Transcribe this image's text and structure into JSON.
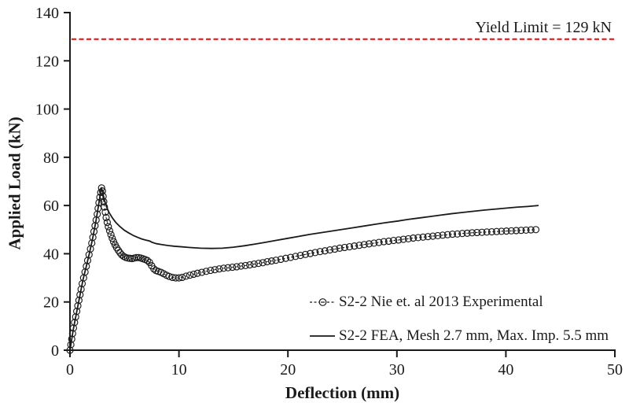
{
  "chart_data": {
    "type": "line",
    "title": "",
    "xlabel": "Deflection (mm)",
    "ylabel": "Applied Load (kN)",
    "xlim": [
      0,
      50
    ],
    "ylim": [
      0,
      140
    ],
    "x_ticks": [
      0,
      10,
      20,
      30,
      40,
      50
    ],
    "y_ticks": [
      0,
      20,
      40,
      60,
      80,
      100,
      120,
      140
    ],
    "grid": false,
    "legend_position": "inside-bottom-right",
    "axis_color": "#1a1a1a",
    "yield_line": {
      "value": 129,
      "label": "Yield Limit = 129 kN",
      "color": "#ff0000",
      "style": "dashed"
    },
    "series": [
      {
        "name": "S2-2 Nie et. al 2013 Experimental",
        "style": "dashed",
        "marker": "circle",
        "color": "#1a1a1a",
        "points": [
          [
            0,
            0
          ],
          [
            0.08,
            2.3
          ],
          [
            0.16,
            4.6
          ],
          [
            0.24,
            6.9
          ],
          [
            0.32,
            9.2
          ],
          [
            0.42,
            11.5
          ],
          [
            0.52,
            13.8
          ],
          [
            0.62,
            16.1
          ],
          [
            0.72,
            18.4
          ],
          [
            0.82,
            20.7
          ],
          [
            0.92,
            23
          ],
          [
            1.02,
            25.3
          ],
          [
            1.12,
            27.6
          ],
          [
            1.25,
            30
          ],
          [
            1.38,
            32.4
          ],
          [
            1.5,
            34.8
          ],
          [
            1.62,
            37.2
          ],
          [
            1.75,
            39.6
          ],
          [
            1.88,
            42
          ],
          [
            2,
            44.4
          ],
          [
            2.1,
            46.8
          ],
          [
            2.2,
            49.2
          ],
          [
            2.3,
            51.6
          ],
          [
            2.4,
            54
          ],
          [
            2.5,
            56.4
          ],
          [
            2.58,
            58.8
          ],
          [
            2.66,
            61.2
          ],
          [
            2.74,
            63.4
          ],
          [
            2.82,
            65.4
          ],
          [
            2.9,
            67.3
          ],
          [
            2.98,
            66
          ],
          [
            3.04,
            63.8
          ],
          [
            3.1,
            61.6
          ],
          [
            3.16,
            59.4
          ],
          [
            3.24,
            57.2
          ],
          [
            3.32,
            55
          ],
          [
            3.42,
            53
          ],
          [
            3.52,
            51.2
          ],
          [
            3.64,
            49.5
          ],
          [
            3.76,
            47.9
          ],
          [
            3.88,
            46.4
          ],
          [
            4,
            45
          ],
          [
            4.14,
            43.7
          ],
          [
            4.28,
            42.5
          ],
          [
            4.44,
            41.4
          ],
          [
            4.6,
            40.4
          ],
          [
            4.76,
            39.5
          ],
          [
            4.93,
            38.9
          ],
          [
            5.1,
            38.5
          ],
          [
            5.3,
            38.2
          ],
          [
            5.5,
            38.1
          ],
          [
            5.7,
            38
          ],
          [
            5.9,
            38.2
          ],
          [
            6.1,
            38.4
          ],
          [
            6.3,
            38.4
          ],
          [
            6.5,
            38.2
          ],
          [
            6.7,
            37.9
          ],
          [
            6.9,
            37.6
          ],
          [
            7.1,
            37.2
          ],
          [
            7.3,
            36.4
          ],
          [
            7.5,
            35
          ],
          [
            7.7,
            33.7
          ],
          [
            7.9,
            33
          ],
          [
            8.1,
            32.7
          ],
          [
            8.35,
            32.3
          ],
          [
            8.6,
            31.7
          ],
          [
            8.85,
            31.1
          ],
          [
            9.1,
            30.6
          ],
          [
            9.4,
            30.2
          ],
          [
            9.7,
            30
          ],
          [
            10,
            30
          ],
          [
            10.3,
            30.2
          ],
          [
            10.65,
            30.7
          ],
          [
            11,
            31.1
          ],
          [
            11.35,
            31.5
          ],
          [
            11.7,
            31.9
          ],
          [
            12.1,
            32.3
          ],
          [
            12.5,
            32.7
          ],
          [
            12.9,
            33.1
          ],
          [
            13.3,
            33.4
          ],
          [
            13.7,
            33.7
          ],
          [
            14.1,
            34
          ],
          [
            14.5,
            34.2
          ],
          [
            14.9,
            34.4
          ],
          [
            15.3,
            34.6
          ],
          [
            15.7,
            34.9
          ],
          [
            16.1,
            35.1
          ],
          [
            16.5,
            35.4
          ],
          [
            16.9,
            35.7
          ],
          [
            17.3,
            36
          ],
          [
            17.7,
            36.3
          ],
          [
            18.1,
            36.7
          ],
          [
            18.5,
            37
          ],
          [
            18.9,
            37.3
          ],
          [
            19.35,
            37.7
          ],
          [
            19.8,
            38.1
          ],
          [
            20.25,
            38.5
          ],
          [
            20.7,
            38.9
          ],
          [
            21.15,
            39.3
          ],
          [
            21.6,
            39.7
          ],
          [
            22.05,
            40.1
          ],
          [
            22.5,
            40.5
          ],
          [
            22.95,
            40.9
          ],
          [
            23.4,
            41.2
          ],
          [
            23.85,
            41.6
          ],
          [
            24.3,
            41.9
          ],
          [
            24.75,
            42.3
          ],
          [
            25.2,
            42.6
          ],
          [
            25.65,
            42.9
          ],
          [
            26.1,
            43.2
          ],
          [
            26.55,
            43.5
          ],
          [
            27,
            43.8
          ],
          [
            27.45,
            44.1
          ],
          [
            27.9,
            44.4
          ],
          [
            28.35,
            44.7
          ],
          [
            28.8,
            45
          ],
          [
            29.25,
            45.2
          ],
          [
            29.7,
            45.5
          ],
          [
            30.15,
            45.7
          ],
          [
            30.6,
            46
          ],
          [
            31.05,
            46.2
          ],
          [
            31.5,
            46.5
          ],
          [
            31.95,
            46.7
          ],
          [
            32.4,
            46.9
          ],
          [
            32.85,
            47.1
          ],
          [
            33.3,
            47.3
          ],
          [
            33.75,
            47.5
          ],
          [
            34.2,
            47.7
          ],
          [
            34.65,
            47.9
          ],
          [
            35.1,
            48.1
          ],
          [
            35.55,
            48.2
          ],
          [
            36,
            48.4
          ],
          [
            36.45,
            48.5
          ],
          [
            36.9,
            48.7
          ],
          [
            37.35,
            48.8
          ],
          [
            37.8,
            48.9
          ],
          [
            38.25,
            49
          ],
          [
            38.7,
            49.1
          ],
          [
            39.15,
            49.2
          ],
          [
            39.6,
            49.3
          ],
          [
            40.05,
            49.4
          ],
          [
            40.5,
            49.5
          ],
          [
            40.95,
            49.6
          ],
          [
            41.4,
            49.7
          ],
          [
            41.85,
            49.8
          ],
          [
            42.3,
            49.9
          ],
          [
            42.75,
            50
          ]
        ]
      },
      {
        "name": "S2-2 FEA, Mesh 2.7 mm, Max. Imp. 5.5 mm",
        "style": "solid",
        "marker": "none",
        "color": "#1a1a1a",
        "points": [
          [
            0,
            0
          ],
          [
            0.3,
            8.5
          ],
          [
            0.6,
            15.5
          ],
          [
            0.9,
            22.4
          ],
          [
            1.2,
            29.3
          ],
          [
            1.5,
            34.8
          ],
          [
            1.8,
            40.5
          ],
          [
            2.1,
            46.8
          ],
          [
            2.4,
            54
          ],
          [
            2.6,
            59.5
          ],
          [
            2.75,
            63.8
          ],
          [
            2.87,
            67.4
          ],
          [
            3,
            65.5
          ],
          [
            3.15,
            62.5
          ],
          [
            3.35,
            59.5
          ],
          [
            3.6,
            57
          ],
          [
            3.9,
            54.8
          ],
          [
            4.2,
            53
          ],
          [
            4.6,
            51.2
          ],
          [
            5,
            49.7
          ],
          [
            5.4,
            48.6
          ],
          [
            5.8,
            47.6
          ],
          [
            6.2,
            46.8
          ],
          [
            6.6,
            46.1
          ],
          [
            7,
            45.6
          ],
          [
            7.3,
            45.3
          ],
          [
            7.5,
            44.8
          ],
          [
            7.9,
            44.2
          ],
          [
            8.4,
            43.8
          ],
          [
            9,
            43.4
          ],
          [
            9.6,
            43.1
          ],
          [
            10.2,
            42.9
          ],
          [
            11,
            42.6
          ],
          [
            12,
            42.3
          ],
          [
            13,
            42.2
          ],
          [
            14,
            42.3
          ],
          [
            15,
            42.7
          ],
          [
            16,
            43.3
          ],
          [
            17,
            44
          ],
          [
            18,
            44.8
          ],
          [
            19,
            45.6
          ],
          [
            20,
            46.4
          ],
          [
            21,
            47.2
          ],
          [
            22,
            48
          ],
          [
            23,
            48.7
          ],
          [
            24,
            49.4
          ],
          [
            25,
            50.1
          ],
          [
            26,
            50.8
          ],
          [
            27,
            51.5
          ],
          [
            28,
            52.2
          ],
          [
            29,
            52.9
          ],
          [
            30,
            53.5
          ],
          [
            31,
            54.2
          ],
          [
            32,
            54.8
          ],
          [
            33,
            55.4
          ],
          [
            34,
            56
          ],
          [
            35,
            56.6
          ],
          [
            36,
            57.1
          ],
          [
            37,
            57.6
          ],
          [
            38,
            58.1
          ],
          [
            39,
            58.5
          ],
          [
            40,
            58.9
          ],
          [
            41,
            59.3
          ],
          [
            42,
            59.6
          ],
          [
            43,
            60
          ]
        ]
      }
    ]
  }
}
